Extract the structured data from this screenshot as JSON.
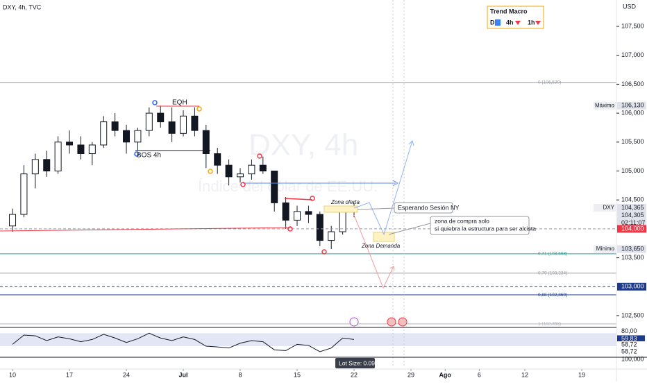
{
  "chart_data": [
    {
      "type": "candlestick",
      "title": "DXY, 4h, TVC",
      "watermark": "DXY, 4h",
      "watermark_subtitle": "Índice del dólar de EE.UU.",
      "currency": "USD",
      "up_color": "#ffffff",
      "down_color": "#131722",
      "x": [
        0,
        1,
        2,
        3,
        4,
        5,
        6,
        7,
        8,
        9,
        10,
        11,
        12,
        13,
        14,
        15,
        16,
        17,
        18,
        19,
        20,
        21,
        22,
        23,
        24,
        25,
        26,
        27,
        28,
        29,
        30
      ],
      "open": [
        104.05,
        104.25,
        104.95,
        105.2,
        105.0,
        105.5,
        105.45,
        105.3,
        105.45,
        105.85,
        105.7,
        105.5,
        105.7,
        106.0,
        105.85,
        105.65,
        105.95,
        105.7,
        105.3,
        105.1,
        104.9,
        104.95,
        105.1,
        105.0,
        104.45,
        104.15,
        104.3,
        104.25,
        103.8,
        103.95,
        104.35
      ],
      "high": [
        104.35,
        105.1,
        105.3,
        105.35,
        105.6,
        105.7,
        105.6,
        105.5,
        105.95,
        106.0,
        105.8,
        105.75,
        106.1,
        106.13,
        106.1,
        106.05,
        106.1,
        105.8,
        105.4,
        105.2,
        105.05,
        105.2,
        105.25,
        105.0,
        104.55,
        104.4,
        104.4,
        104.3,
        104.05,
        104.4,
        104.45
      ],
      "low": [
        103.95,
        104.2,
        104.7,
        104.9,
        104.95,
        105.3,
        105.2,
        105.1,
        105.4,
        105.6,
        105.3,
        105.35,
        105.6,
        105.75,
        105.5,
        105.6,
        105.6,
        105.05,
        104.95,
        104.75,
        104.8,
        104.85,
        104.95,
        104.3,
        104.0,
        104.05,
        104.1,
        103.7,
        103.65,
        103.9,
        104.2
      ],
      "close": [
        104.25,
        104.95,
        105.2,
        105.0,
        105.5,
        105.45,
        105.3,
        105.45,
        105.85,
        105.7,
        105.5,
        105.7,
        106.0,
        105.85,
        105.65,
        105.95,
        105.7,
        105.3,
        105.1,
        104.9,
        104.95,
        105.1,
        105.0,
        104.45,
        104.15,
        104.3,
        104.25,
        103.8,
        103.95,
        104.35,
        104.305
      ],
      "xlim": [
        -1.1,
        53.05
      ],
      "xticks": [
        {
          "value": 0,
          "label": "10"
        },
        {
          "value": 5,
          "label": "17"
        },
        {
          "value": 10,
          "label": "24"
        },
        {
          "value": 15,
          "label": "Jul"
        },
        {
          "value": 20,
          "label": "8"
        },
        {
          "value": 25,
          "label": "15"
        },
        {
          "value": 30,
          "label": "22"
        },
        {
          "value": 35,
          "label": "29"
        },
        {
          "value": 38,
          "label": "Ago"
        },
        {
          "value": 41,
          "label": "6"
        },
        {
          "value": 45,
          "label": "12"
        },
        {
          "value": 50,
          "label": "19"
        }
      ],
      "ylim": [
        102.32,
        107.956
      ],
      "yticks": [
        {
          "value": 102.5,
          "label": "102,500"
        },
        {
          "value": 103.5,
          "label": "103,500"
        },
        {
          "value": 104.5,
          "label": "104,500"
        },
        {
          "value": 105,
          "label": "105,000"
        },
        {
          "value": 105.5,
          "label": "105,500"
        },
        {
          "value": 106,
          "label": "106,000"
        },
        {
          "value": 106.5,
          "label": "106,500"
        },
        {
          "value": 107,
          "label": "107,000"
        },
        {
          "value": 107.5,
          "label": "107,500"
        }
      ],
      "levels": [
        {
          "value": 106.53,
          "label": "0 (106,530)",
          "color": "#9598a1"
        },
        {
          "value": 103.568,
          "label": "0,71 (103,568)",
          "color": "#26a69a"
        },
        {
          "value": 103.234,
          "label": "0,79 (103,234)",
          "color": "#9598a1"
        },
        {
          "value": 102.859,
          "label": "0,88 (102,859)",
          "color": "#1e3a8a"
        },
        {
          "value": 102.358,
          "label": "1 (102,358)",
          "color": "#b2b5be"
        }
      ],
      "price_tags": [
        {
          "value": 106.13,
          "label": "106,130",
          "name": "Máximo"
        },
        {
          "value": 104.365,
          "label": "104,365",
          "name": "DXY"
        },
        {
          "value": 104.305,
          "label": "104,305"
        },
        {
          "value": 104,
          "label": "104,000",
          "color": "#f23645"
        },
        {
          "value": 103.65,
          "label": "103,650",
          "name": "Mínimo"
        },
        {
          "value": 103,
          "label": "103,000",
          "color": "#1e3a8a"
        }
      ],
      "countdown": "02:11:07",
      "annotations": {
        "eqh": "EQH",
        "bos": "BOS 4h",
        "supply": "Zona oferta",
        "demand": "Zona Demanda",
        "wait": "Esperando Sesión NY",
        "buy_1": "zona de compra solo",
        "buy_2": "si quiebra la estructura para ser alcista"
      },
      "trend": {
        "title": "Trend Macro",
        "items": [
          "D",
          "4h",
          "1h"
        ]
      },
      "lot_size": "Lot Size: 0.09"
    },
    {
      "type": "line",
      "color": "#131722",
      "x": [
        0,
        1,
        2,
        3,
        4,
        5,
        6,
        7,
        8,
        9,
        10,
        11,
        12,
        13,
        14,
        15,
        16,
        17,
        18,
        19,
        20,
        21,
        22,
        23,
        24,
        25,
        26,
        27,
        28,
        29,
        30
      ],
      "values": [
        45,
        70,
        68,
        55,
        65,
        60,
        52,
        58,
        72,
        62,
        50,
        60,
        75,
        62,
        55,
        65,
        58,
        40,
        38,
        35,
        48,
        55,
        52,
        30,
        28,
        45,
        42,
        25,
        35,
        62,
        58
      ],
      "ylim": [
        10,
        85
      ],
      "band": [
        40,
        75
      ],
      "yticks": [
        {
          "value": 80,
          "label": "80,00"
        }
      ],
      "tags": [
        {
          "value": 59.83,
          "label": "59,83",
          "color": "#1e3a8a"
        },
        {
          "value": 58.72,
          "label": "58,72"
        },
        {
          "value": 58.72,
          "label": "58,72"
        }
      ],
      "scale_note": "100,000"
    }
  ]
}
